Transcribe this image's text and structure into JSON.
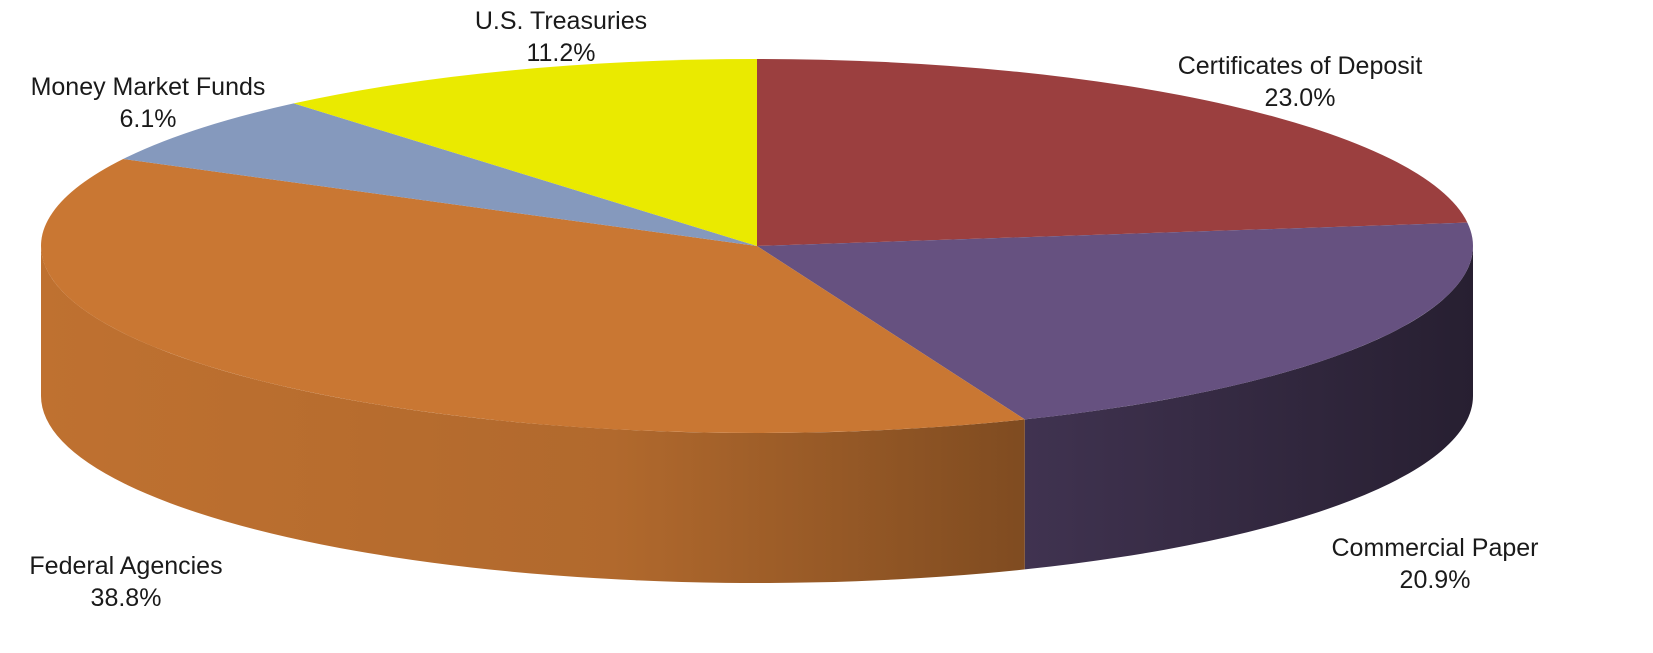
{
  "chart_data": {
    "type": "pie",
    "title": "",
    "three_d": true,
    "legend": "none",
    "slices": [
      {
        "label": "Certificates of Deposit",
        "value": 23.0,
        "display": "23.0%",
        "color": "#9b3f3f"
      },
      {
        "label": "Commercial Paper",
        "value": 20.9,
        "display": "20.9%",
        "color": "#665180"
      },
      {
        "label": "Federal Agencies",
        "value": 38.8,
        "display": "38.8%",
        "color": "#c97733"
      },
      {
        "label": "Money Market Funds",
        "value": 6.1,
        "display": "6.1%",
        "color": "#8599bd"
      },
      {
        "label": "U.S. Treasuries",
        "value": 11.2,
        "display": "11.2%",
        "color": "#eaea00"
      }
    ]
  }
}
